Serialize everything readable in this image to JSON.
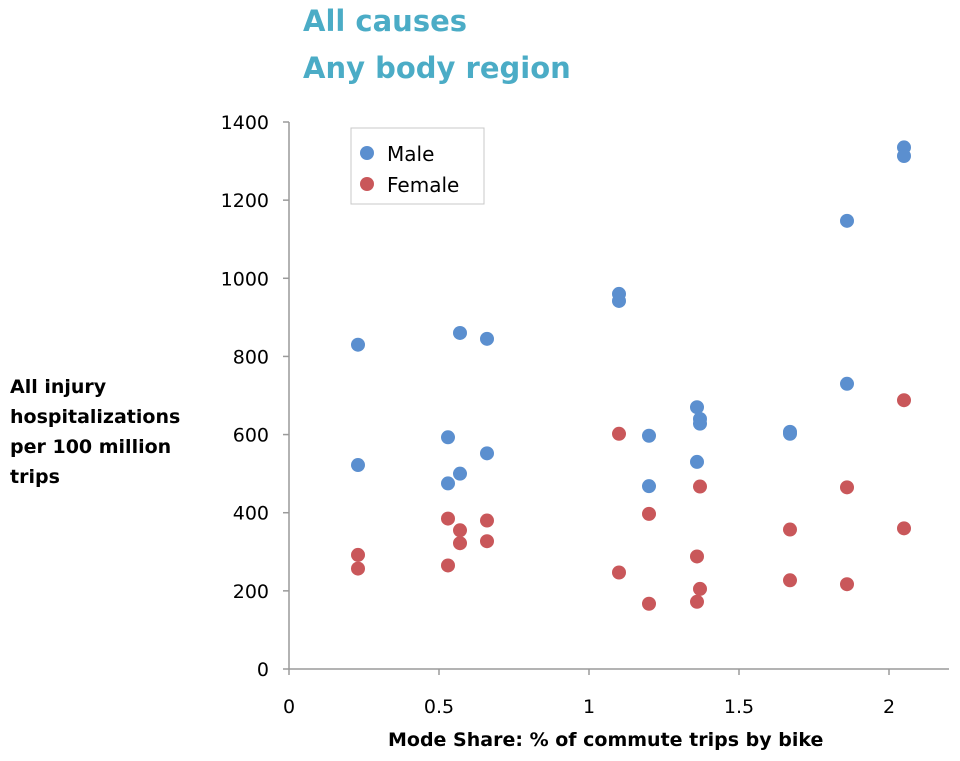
{
  "chart_data": {
    "type": "scatter",
    "title": "All causes",
    "subtitle": "Any body region",
    "xlabel": "Mode Share: % of commute trips by bike",
    "ylabel": [
      "All injury",
      "hospitalizations",
      "per 100 million",
      "trips"
    ],
    "xlim": [
      0,
      2.2
    ],
    "ylim": [
      0,
      1400
    ],
    "xticks": [
      0,
      0.5,
      1,
      1.5,
      2
    ],
    "xtick_labels": [
      "0",
      "0.5",
      "1",
      "1.5",
      "2"
    ],
    "yticks": [
      0,
      200,
      400,
      600,
      800,
      1000,
      1200,
      1400
    ],
    "ytick_labels": [
      "0",
      "200",
      "400",
      "600",
      "800",
      "1000",
      "1200",
      "1400"
    ],
    "grid": false,
    "legend_position": "top-left",
    "series": [
      {
        "name": "Male",
        "color": "#5b8fcf",
        "points": [
          [
            0.23,
            830
          ],
          [
            0.23,
            522
          ],
          [
            0.53,
            593
          ],
          [
            0.53,
            475
          ],
          [
            0.57,
            860
          ],
          [
            0.57,
            500
          ],
          [
            0.66,
            845
          ],
          [
            0.66,
            552
          ],
          [
            1.1,
            960
          ],
          [
            1.1,
            942
          ],
          [
            1.2,
            597
          ],
          [
            1.2,
            468
          ],
          [
            1.36,
            670
          ],
          [
            1.36,
            530
          ],
          [
            1.37,
            640
          ],
          [
            1.37,
            628
          ],
          [
            1.67,
            607
          ],
          [
            1.67,
            602
          ],
          [
            1.86,
            1147
          ],
          [
            1.86,
            730
          ],
          [
            2.05,
            1335
          ],
          [
            2.05,
            1313
          ]
        ]
      },
      {
        "name": "Female",
        "color": "#c9575a",
        "points": [
          [
            0.23,
            292
          ],
          [
            0.23,
            257
          ],
          [
            0.53,
            385
          ],
          [
            0.53,
            265
          ],
          [
            0.57,
            355
          ],
          [
            0.57,
            322
          ],
          [
            0.66,
            380
          ],
          [
            0.66,
            327
          ],
          [
            1.1,
            602
          ],
          [
            1.1,
            247
          ],
          [
            1.2,
            397
          ],
          [
            1.2,
            167
          ],
          [
            1.36,
            288
          ],
          [
            1.36,
            172
          ],
          [
            1.37,
            467
          ],
          [
            1.37,
            205
          ],
          [
            1.67,
            357
          ],
          [
            1.67,
            227
          ],
          [
            1.86,
            465
          ],
          [
            1.86,
            217
          ],
          [
            2.05,
            688
          ],
          [
            2.05,
            360
          ]
        ]
      }
    ]
  }
}
